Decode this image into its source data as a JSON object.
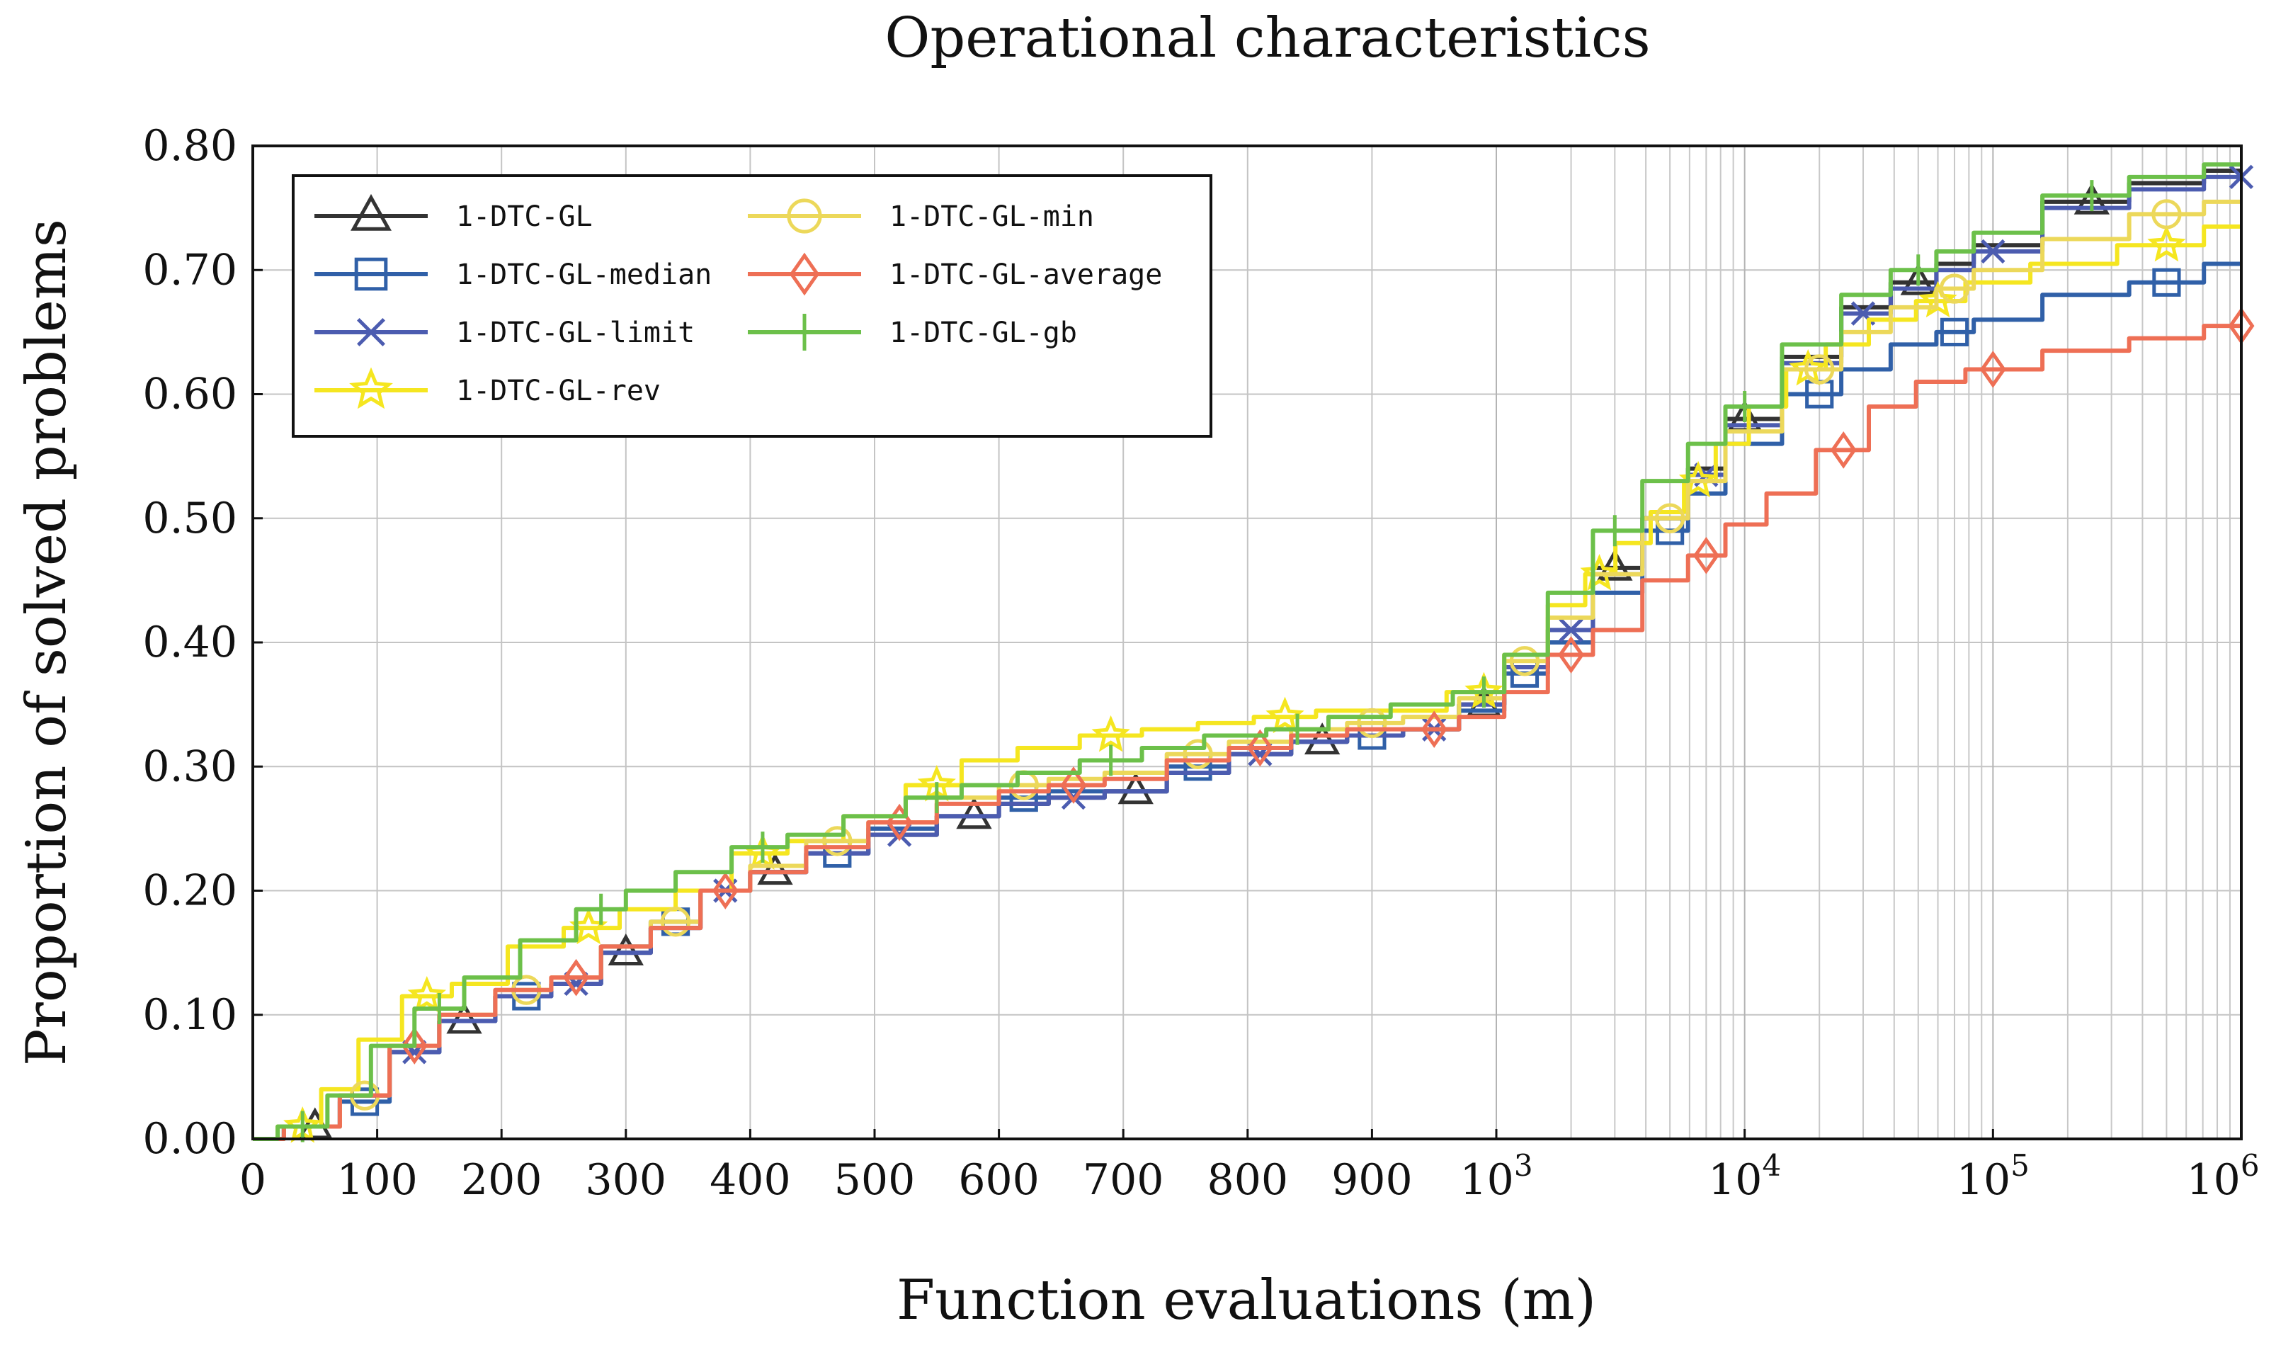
{
  "chart_data": {
    "type": "line",
    "title": "Operational characteristics",
    "xlabel": "Function evaluations (m)",
    "ylabel": "Proportion of solved problems",
    "x_scale": "linear from 0 to 1000, logarithmic from 10^3 to 10^6",
    "xlim": [
      0,
      1000000
    ],
    "ylim": [
      0,
      0.8
    ],
    "grid": true,
    "legend_position": "top-left",
    "xticks_linear": [
      "0",
      "100",
      "200",
      "300",
      "400",
      "500",
      "600",
      "700",
      "800",
      "900"
    ],
    "xticks_log": [
      {
        "base": "10",
        "exp": "3"
      },
      {
        "base": "10",
        "exp": "4"
      },
      {
        "base": "10",
        "exp": "5"
      },
      {
        "base": "10",
        "exp": "6"
      }
    ],
    "yticks": [
      "0.00",
      "0.10",
      "0.20",
      "0.30",
      "0.40",
      "0.50",
      "0.60",
      "0.70",
      "0.80"
    ],
    "series": [
      {
        "name": "1-DTC-GL",
        "color": "#333333",
        "marker": "triangle",
        "x": [
          0,
          50,
          90,
          130,
          170,
          220,
          260,
          300,
          340,
          380,
          420,
          470,
          520,
          580,
          620,
          660,
          710,
          760,
          810,
          860,
          900,
          950,
          990,
          1300,
          2000,
          3000,
          5000,
          7000,
          10000,
          20000,
          30000,
          50000,
          70000,
          100000,
          250000,
          500000,
          1000000
        ],
        "y": [
          0,
          0.01,
          0.035,
          0.07,
          0.095,
          0.115,
          0.125,
          0.15,
          0.17,
          0.2,
          0.215,
          0.23,
          0.245,
          0.26,
          0.27,
          0.275,
          0.28,
          0.295,
          0.31,
          0.32,
          0.325,
          0.33,
          0.35,
          0.38,
          0.41,
          0.46,
          0.5,
          0.54,
          0.58,
          0.63,
          0.67,
          0.69,
          0.705,
          0.72,
          0.755,
          0.77,
          0.78
        ]
      },
      {
        "name": "1-DTC-GL-median",
        "color": "#3060a8",
        "marker": "square",
        "x": [
          0,
          50,
          90,
          130,
          170,
          220,
          260,
          300,
          340,
          380,
          420,
          470,
          520,
          580,
          620,
          660,
          710,
          760,
          810,
          860,
          900,
          950,
          990,
          1300,
          2000,
          3000,
          5000,
          7000,
          10000,
          20000,
          30000,
          50000,
          70000,
          100000,
          250000,
          500000,
          1000000
        ],
        "y": [
          0,
          0.01,
          0.03,
          0.07,
          0.095,
          0.115,
          0.125,
          0.155,
          0.175,
          0.2,
          0.215,
          0.23,
          0.25,
          0.26,
          0.275,
          0.28,
          0.28,
          0.3,
          0.31,
          0.32,
          0.325,
          0.33,
          0.345,
          0.375,
          0.4,
          0.44,
          0.49,
          0.52,
          0.56,
          0.6,
          0.62,
          0.64,
          0.65,
          0.66,
          0.68,
          0.69,
          0.705
        ]
      },
      {
        "name": "1-DTC-GL-limit",
        "color": "#4c5cb0",
        "marker": "cross",
        "x": [
          0,
          50,
          90,
          130,
          170,
          220,
          260,
          300,
          340,
          380,
          420,
          470,
          520,
          580,
          620,
          660,
          710,
          760,
          810,
          860,
          900,
          950,
          990,
          1300,
          2000,
          3000,
          5000,
          7000,
          10000,
          20000,
          30000,
          50000,
          70000,
          100000,
          250000,
          500000,
          1000000
        ],
        "y": [
          0,
          0.01,
          0.035,
          0.07,
          0.095,
          0.115,
          0.125,
          0.15,
          0.17,
          0.2,
          0.215,
          0.23,
          0.245,
          0.26,
          0.27,
          0.275,
          0.28,
          0.295,
          0.31,
          0.32,
          0.325,
          0.33,
          0.35,
          0.38,
          0.41,
          0.455,
          0.5,
          0.535,
          0.575,
          0.625,
          0.665,
          0.685,
          0.7,
          0.715,
          0.75,
          0.765,
          0.775
        ]
      },
      {
        "name": "1-DTC-GL-rev",
        "color": "#f5e620",
        "marker": "star",
        "x": [
          0,
          40,
          70,
          100,
          140,
          180,
          230,
          270,
          320,
          360,
          410,
          450,
          500,
          550,
          590,
          640,
          690,
          740,
          780,
          830,
          880,
          930,
          990,
          1300,
          2000,
          2600,
          3500,
          5000,
          6500,
          9000,
          12000,
          18000,
          25000,
          40000,
          60000,
          100000,
          200000,
          500000,
          1000000
        ],
        "y": [
          0,
          0.01,
          0.04,
          0.08,
          0.115,
          0.125,
          0.155,
          0.17,
          0.185,
          0.2,
          0.23,
          0.24,
          0.26,
          0.285,
          0.305,
          0.315,
          0.325,
          0.33,
          0.335,
          0.34,
          0.345,
          0.345,
          0.36,
          0.39,
          0.43,
          0.455,
          0.48,
          0.505,
          0.53,
          0.56,
          0.59,
          0.62,
          0.64,
          0.66,
          0.675,
          0.69,
          0.705,
          0.72,
          0.735
        ]
      },
      {
        "name": "1-DTC-GL-min",
        "color": "#ecd85a",
        "marker": "circle",
        "x": [
          0,
          50,
          90,
          130,
          170,
          220,
          260,
          300,
          340,
          380,
          420,
          470,
          520,
          580,
          620,
          660,
          710,
          760,
          810,
          860,
          900,
          950,
          990,
          1300,
          2000,
          3000,
          5000,
          7000,
          10000,
          20000,
          30000,
          50000,
          70000,
          100000,
          250000,
          500000,
          1000000
        ],
        "y": [
          0,
          0.01,
          0.035,
          0.075,
          0.1,
          0.12,
          0.13,
          0.155,
          0.175,
          0.2,
          0.22,
          0.24,
          0.255,
          0.275,
          0.285,
          0.29,
          0.295,
          0.31,
          0.32,
          0.33,
          0.335,
          0.34,
          0.355,
          0.385,
          0.42,
          0.455,
          0.5,
          0.53,
          0.57,
          0.62,
          0.65,
          0.67,
          0.685,
          0.7,
          0.725,
          0.745,
          0.755
        ]
      },
      {
        "name": "1-DTC-GL-average",
        "color": "#ee6f55",
        "marker": "diamond",
        "x": [
          0,
          50,
          90,
          130,
          170,
          220,
          260,
          300,
          340,
          380,
          420,
          470,
          520,
          580,
          620,
          660,
          710,
          760,
          810,
          860,
          900,
          950,
          990,
          1300,
          2000,
          3000,
          5000,
          7000,
          10000,
          15000,
          25000,
          40000,
          60000,
          100000,
          250000,
          500000,
          1000000
        ],
        "y": [
          0,
          0.01,
          0.035,
          0.075,
          0.1,
          0.12,
          0.13,
          0.155,
          0.17,
          0.2,
          0.215,
          0.235,
          0.255,
          0.27,
          0.28,
          0.285,
          0.29,
          0.305,
          0.315,
          0.325,
          0.33,
          0.33,
          0.34,
          0.36,
          0.39,
          0.41,
          0.45,
          0.47,
          0.495,
          0.52,
          0.555,
          0.59,
          0.61,
          0.62,
          0.635,
          0.645,
          0.655
        ]
      },
      {
        "name": "1-DTC-GL-gb",
        "color": "#6cc04a",
        "marker": "plus",
        "x": [
          0,
          40,
          80,
          110,
          150,
          190,
          240,
          280,
          320,
          360,
          410,
          450,
          500,
          550,
          590,
          640,
          690,
          740,
          790,
          840,
          890,
          940,
          990,
          1300,
          2000,
          3000,
          5000,
          7000,
          10000,
          20000,
          30000,
          50000,
          70000,
          100000,
          250000,
          500000,
          1000000
        ],
        "y": [
          0,
          0.01,
          0.035,
          0.075,
          0.105,
          0.13,
          0.16,
          0.185,
          0.2,
          0.215,
          0.235,
          0.245,
          0.26,
          0.275,
          0.285,
          0.295,
          0.305,
          0.315,
          0.325,
          0.33,
          0.34,
          0.35,
          0.36,
          0.39,
          0.44,
          0.49,
          0.53,
          0.56,
          0.59,
          0.64,
          0.68,
          0.7,
          0.715,
          0.73,
          0.76,
          0.775,
          0.785
        ]
      }
    ]
  }
}
